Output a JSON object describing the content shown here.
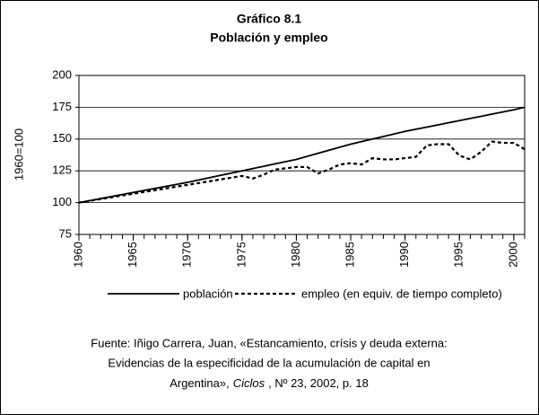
{
  "chart_data": {
    "type": "line",
    "title": [
      "Gráfico 8.1",
      "Población y empleo"
    ],
    "y_label": "1960=100",
    "x": [
      1960,
      1961,
      1962,
      1963,
      1964,
      1965,
      1966,
      1967,
      1968,
      1969,
      1970,
      1971,
      1972,
      1973,
      1974,
      1975,
      1976,
      1977,
      1978,
      1979,
      1980,
      1981,
      1982,
      1983,
      1984,
      1985,
      1986,
      1987,
      1988,
      1989,
      1990,
      1991,
      1992,
      1993,
      1994,
      1995,
      1996,
      1997,
      1998,
      1999,
      2000,
      2001
    ],
    "xlim": [
      1960,
      2001
    ],
    "xticks": [
      1960,
      1965,
      1970,
      1975,
      1980,
      1985,
      1990,
      1995,
      2000
    ],
    "ylim": [
      75,
      200
    ],
    "yticks": [
      75,
      100,
      125,
      150,
      175,
      200
    ],
    "grid": true,
    "series": [
      {
        "name": "población",
        "color": "#000000",
        "dash": false,
        "values": [
          100,
          101.6,
          103.2,
          104.8,
          106.4,
          108,
          109.6,
          111.2,
          112.8,
          114.4,
          116,
          117.8,
          119.6,
          121.4,
          123.2,
          125,
          126.8,
          128.6,
          130.4,
          132.2,
          134,
          136.4,
          138.8,
          141.2,
          143.6,
          146,
          148,
          150,
          152,
          154,
          156,
          157.7,
          159.4,
          161.1,
          162.8,
          164.5,
          166.2,
          167.9,
          169.6,
          171.3,
          173,
          175
        ]
      },
      {
        "name": "empleo (en equiv. de tiempo completo)",
        "color": "#000000",
        "dash": true,
        "values": [
          100,
          101.4,
          102.8,
          104.2,
          105.6,
          107,
          108.4,
          109.8,
          111.2,
          112.6,
          114,
          115.4,
          116.8,
          118.2,
          119.6,
          121,
          119,
          122,
          126,
          127,
          128,
          128,
          123,
          126,
          130,
          131,
          130,
          135,
          134,
          134,
          135,
          136,
          145,
          146,
          146,
          137,
          134,
          140,
          148,
          147,
          147,
          142
        ]
      }
    ],
    "source": {
      "lines": [
        "Fuente: Iñigo Carrera, Juan, «Estancamiento, crísis y deuda externa:",
        "Evidencias de la especificidad de la acumulación de capital en"
      ],
      "last": [
        "Argentina»,",
        "Ciclos",
        ", Nº 23, 2002, p. 18"
      ]
    }
  }
}
